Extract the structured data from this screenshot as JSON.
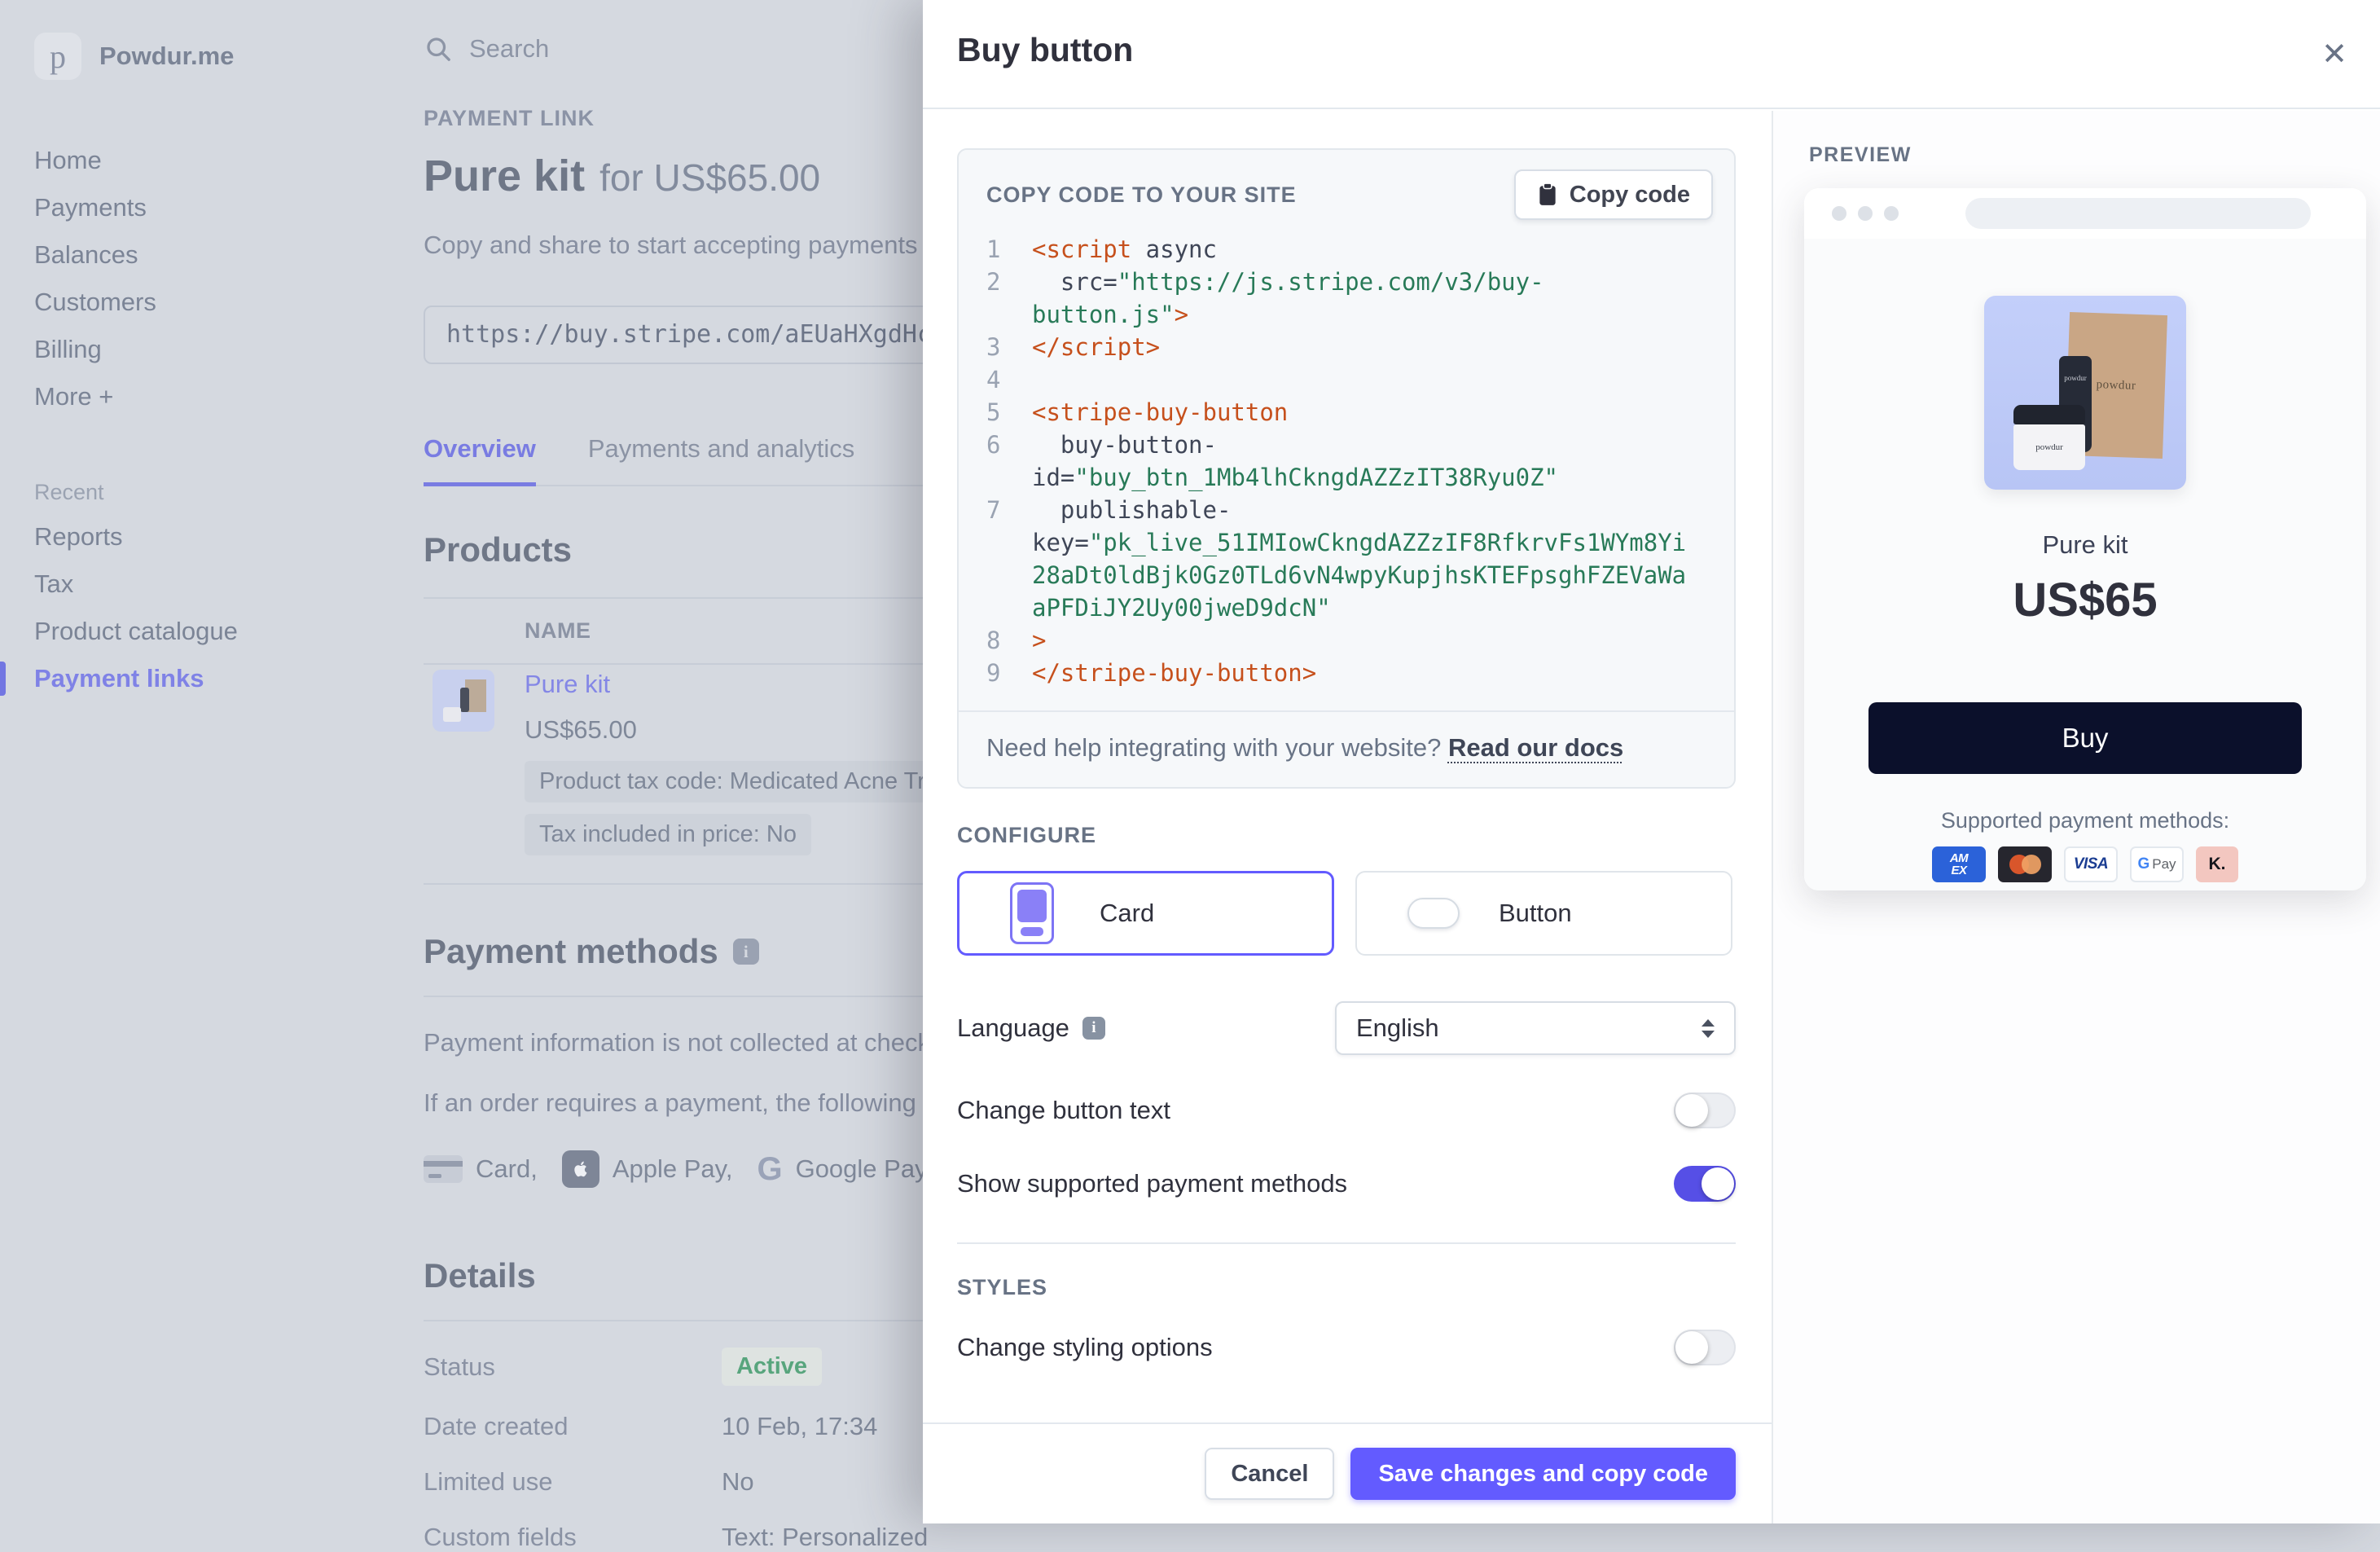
{
  "page": {
    "brand": {
      "logo_letter": "p",
      "name": "Powdur.me"
    },
    "search": {
      "placeholder": "Search"
    },
    "sidebar": {
      "items": [
        "Home",
        "Payments",
        "Balances",
        "Customers",
        "Billing",
        "More +"
      ],
      "recent_label": "Recent",
      "recent_items": [
        "Reports",
        "Tax",
        "Product catalogue",
        "Payment links"
      ],
      "active_item": "Payment links"
    },
    "header": {
      "eyebrow": "PAYMENT LINK",
      "title": "Pure kit",
      "title_suffix": "for US$65.00",
      "subtitle": "Copy and share to start accepting payments wi",
      "link_url": "https://buy.stripe.com/aEUaHXgdHciV"
    },
    "tabs": [
      {
        "label": "Overview",
        "active": true
      },
      {
        "label": "Payments and analytics",
        "active": false
      }
    ],
    "products": {
      "heading": "Products",
      "column_name": "NAME",
      "row": {
        "name": "Pure kit",
        "price": "US$65.00",
        "badges": [
          "Product tax code: Medicated Acne Treatm",
          "Tax included in price: No"
        ]
      }
    },
    "payment_methods": {
      "heading": "Payment methods",
      "line1": "Payment information is not collected at checko",
      "line2": "If an order requires a payment, the following pa",
      "labels": [
        "Card,",
        "Apple Pay,",
        "Google Pay,"
      ],
      "klarna_icon_text": "K.",
      "klarna_cut": "K"
    },
    "details": {
      "heading": "Details",
      "rows": [
        {
          "label": "Status",
          "value": "Active"
        },
        {
          "label": "Date created",
          "value": "10 Feb, 17:34"
        },
        {
          "label": "Limited use",
          "value": "No"
        },
        {
          "label": "Custom fields",
          "value": "Text: Personalized"
        }
      ]
    }
  },
  "modal": {
    "title": "Buy button",
    "close_glyph": "✕",
    "code_panel": {
      "label": "COPY CODE TO YOUR SITE",
      "copy_button": "Copy code",
      "help_text": "Need help integrating with your website? ",
      "help_link": "Read our docs",
      "lines": [
        {
          "n": "1",
          "s": [
            [
              "tag",
              "<script"
            ],
            [
              "plain",
              " async"
            ]
          ]
        },
        {
          "n": "2",
          "s": [
            [
              "plain",
              "  src="
            ],
            [
              "str",
              "\"https://js.stripe.com/v3/buy-"
            ]
          ]
        },
        {
          "n": "",
          "s": [
            [
              "str",
              "button.js\""
            ],
            [
              "tag",
              ">"
            ]
          ]
        },
        {
          "n": "3",
          "s": [
            [
              "tag",
              "</script>"
            ]
          ]
        },
        {
          "n": "4",
          "s": []
        },
        {
          "n": "5",
          "s": [
            [
              "tag",
              "<stripe-buy-button"
            ]
          ]
        },
        {
          "n": "6",
          "s": [
            [
              "plain",
              "  buy-button-"
            ]
          ]
        },
        {
          "n": "",
          "s": [
            [
              "plain",
              "id="
            ],
            [
              "str",
              "\"buy_btn_1Mb4lhCkngdAZZzIT38Ryu0Z\""
            ]
          ]
        },
        {
          "n": "7",
          "s": [
            [
              "plain",
              "  publishable-"
            ]
          ]
        },
        {
          "n": "",
          "s": [
            [
              "plain",
              "key="
            ],
            [
              "str",
              "\"pk_live_51IMIowCkngdAZZzIF8RfkrvFs1WYm8Yi"
            ]
          ]
        },
        {
          "n": "",
          "s": [
            [
              "str",
              "28aDt0ldBjk0Gz0TLd6vN4wpyKupjhsKTEFpsghFZEVaWa"
            ]
          ]
        },
        {
          "n": "",
          "s": [
            [
              "str",
              "aPFDiJY2Uy00jweD9dcN\""
            ]
          ]
        },
        {
          "n": "8",
          "s": [
            [
              "tag",
              ">"
            ]
          ]
        },
        {
          "n": "9",
          "s": [
            [
              "tag",
              "</stripe-buy-button>"
            ]
          ]
        }
      ]
    },
    "configure": {
      "label": "CONFIGURE",
      "options": [
        {
          "label": "Card",
          "selected": true
        },
        {
          "label": "Button",
          "selected": false
        }
      ],
      "language_label": "Language",
      "language_value": "English",
      "toggles": [
        {
          "label": "Change button text",
          "on": false
        },
        {
          "label": "Show supported payment methods",
          "on": true
        }
      ]
    },
    "styles": {
      "label": "STYLES",
      "toggle": {
        "label": "Change styling options",
        "on": false
      }
    },
    "footer": {
      "cancel": "Cancel",
      "save": "Save changes and copy code"
    }
  },
  "preview": {
    "label": "PREVIEW",
    "brand_text": "powdur",
    "product_name": "Pure kit",
    "price": "US$65",
    "buy_button": "Buy",
    "supported_label": "Supported payment methods:",
    "chips": [
      {
        "type": "amex",
        "text": "AM EX"
      },
      {
        "type": "mastercard",
        "text": ""
      },
      {
        "type": "visa",
        "text": "VISA"
      },
      {
        "type": "gpay",
        "text": "Pay"
      },
      {
        "type": "klarna",
        "text": "K."
      }
    ]
  },
  "colors": {
    "accent": "#635bff",
    "toggle_on": "#564fe6",
    "buy_button_bg": "#0b102b",
    "code_tag": "#c6501c",
    "code_string": "#287a58",
    "code_plain": "#3f4657",
    "active_badge_text": "#58a57d",
    "overlay_page_bg": "#d5d9e0"
  }
}
